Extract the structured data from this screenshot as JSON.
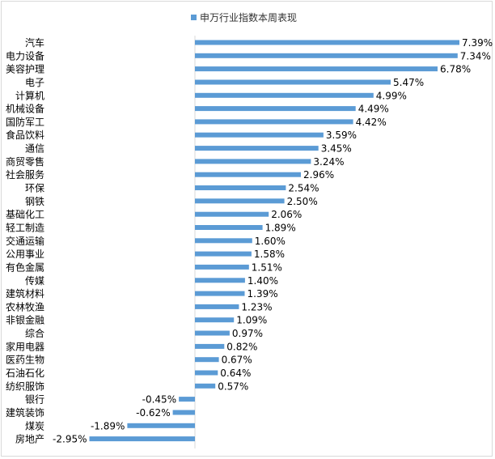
{
  "chart_data": {
    "type": "bar",
    "orientation": "horizontal",
    "legend": {
      "position": "top",
      "label": "申万行业指数本周表现"
    },
    "series": [
      {
        "name": "申万行业指数本周表现",
        "color": "#5b9bd5",
        "categories": [
          "汽车",
          "电力设备",
          "美容护理",
          "电子",
          "计算机",
          "机械设备",
          "国防军工",
          "食品饮料",
          "通信",
          "商贸零售",
          "社会服务",
          "环保",
          "钢铁",
          "基础化工",
          "轻工制造",
          "交通运输",
          "公用事业",
          "有色金属",
          "传媒",
          "建筑材料",
          "农林牧渔",
          "非银金融",
          "综合",
          "家用电器",
          "医药生物",
          "石油石化",
          "纺织服饰",
          "银行",
          "建筑装饰",
          "煤炭",
          "房地产"
        ],
        "values": [
          7.39,
          7.34,
          6.78,
          5.47,
          4.99,
          4.49,
          4.42,
          3.59,
          3.45,
          3.24,
          2.96,
          2.54,
          2.5,
          2.06,
          1.89,
          1.6,
          1.58,
          1.51,
          1.4,
          1.39,
          1.23,
          1.09,
          0.97,
          0.82,
          0.67,
          0.64,
          0.57,
          -0.45,
          -0.62,
          -1.89,
          -2.95
        ],
        "labels": [
          "7.39%",
          "7.34%",
          "6.78%",
          "5.47%",
          "4.99%",
          "4.49%",
          "4.42%",
          "3.59%",
          "3.45%",
          "3.24%",
          "2.96%",
          "2.54%",
          "2.50%",
          "2.06%",
          "1.89%",
          "1.60%",
          "1.58%",
          "1.51%",
          "1.40%",
          "1.39%",
          "1.23%",
          "1.09%",
          "0.97%",
          "0.82%",
          "0.67%",
          "0.64%",
          "0.57%",
          "-0.45%",
          "-0.62%",
          "-1.89%",
          "-2.95%"
        ]
      }
    ],
    "grid": false
  }
}
